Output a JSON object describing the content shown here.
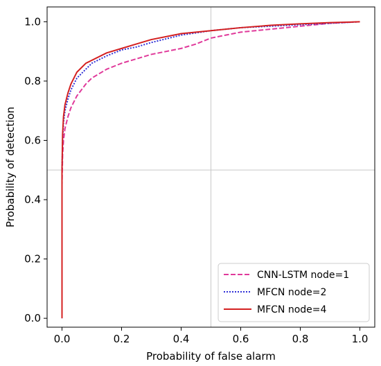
{
  "chart_data": {
    "type": "line",
    "xlabel": "Probability of false alarm",
    "ylabel": "Probability of detection",
    "xlim": [
      -0.05,
      1.05
    ],
    "ylim": [
      -0.03,
      1.05
    ],
    "xticks": [
      0.0,
      0.2,
      0.4,
      0.6,
      0.8,
      1.0
    ],
    "yticks": [
      0.0,
      0.2,
      0.4,
      0.6,
      0.8,
      1.0
    ],
    "xtick_labels": [
      "0.0",
      "0.2",
      "0.4",
      "0.6",
      "0.8",
      "1.0"
    ],
    "ytick_labels": [
      "0.0",
      "0.2",
      "0.4",
      "0.6",
      "0.8",
      "1.0"
    ],
    "reference_lines": {
      "x": 0.5,
      "y": 0.5
    },
    "legend_position": "lower-right",
    "series": [
      {
        "name": "CNN-LSTM node=1",
        "color": "#e0399a",
        "style": "dashed",
        "x": [
          0.0,
          0.0,
          0.002,
          0.005,
          0.01,
          0.02,
          0.03,
          0.05,
          0.08,
          0.1,
          0.15,
          0.2,
          0.25,
          0.3,
          0.35,
          0.4,
          0.45,
          0.5,
          0.55,
          0.6,
          0.7,
          0.8,
          0.9,
          1.0
        ],
        "y": [
          0.0,
          0.45,
          0.55,
          0.6,
          0.64,
          0.68,
          0.71,
          0.75,
          0.79,
          0.81,
          0.84,
          0.86,
          0.875,
          0.89,
          0.9,
          0.91,
          0.925,
          0.945,
          0.955,
          0.965,
          0.975,
          0.985,
          0.995,
          1.0
        ]
      },
      {
        "name": "MFCN node=2",
        "color": "#2e2ed6",
        "style": "dotted",
        "x": [
          0.0,
          0.0,
          0.002,
          0.005,
          0.01,
          0.02,
          0.03,
          0.05,
          0.08,
          0.1,
          0.15,
          0.2,
          0.25,
          0.3,
          0.4,
          0.5,
          0.6,
          0.7,
          0.8,
          0.9,
          1.0
        ],
        "y": [
          0.0,
          0.5,
          0.6,
          0.66,
          0.7,
          0.74,
          0.77,
          0.81,
          0.84,
          0.86,
          0.885,
          0.905,
          0.915,
          0.93,
          0.955,
          0.97,
          0.98,
          0.985,
          0.99,
          0.995,
          1.0
        ]
      },
      {
        "name": "MFCN node=4",
        "color": "#d42020",
        "style": "solid",
        "x": [
          0.0,
          0.0,
          0.002,
          0.005,
          0.01,
          0.02,
          0.03,
          0.05,
          0.08,
          0.1,
          0.15,
          0.2,
          0.25,
          0.3,
          0.4,
          0.5,
          0.6,
          0.7,
          0.8,
          0.9,
          1.0
        ],
        "y": [
          0.0,
          0.5,
          0.62,
          0.68,
          0.72,
          0.76,
          0.79,
          0.83,
          0.86,
          0.87,
          0.895,
          0.91,
          0.925,
          0.94,
          0.96,
          0.97,
          0.98,
          0.988,
          0.993,
          0.997,
          1.0
        ]
      }
    ]
  }
}
